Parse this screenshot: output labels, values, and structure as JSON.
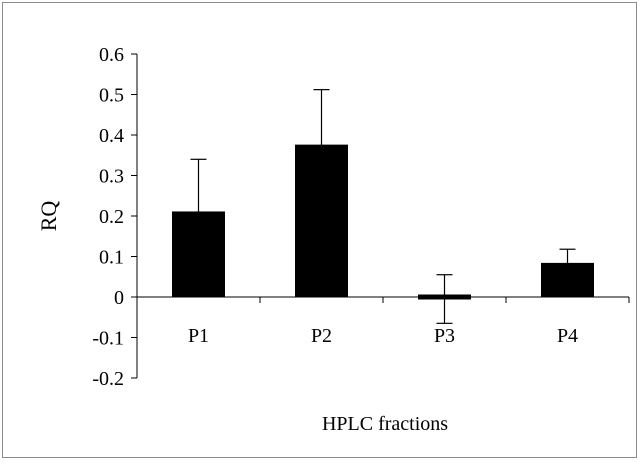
{
  "chart_data": {
    "type": "bar",
    "categories": [
      "P1",
      "P2",
      "P3",
      "P4"
    ],
    "values": [
      0.21,
      0.375,
      -0.005,
      0.083
    ],
    "error_plus": [
      0.13,
      0.137,
      0.06,
      0.035
    ],
    "xlabel": "HPLC fractions",
    "ylabel": "RQ",
    "ylim": [
      -0.2,
      0.6
    ],
    "yticks": [
      -0.2,
      -0.1,
      0,
      0.1,
      0.2,
      0.3,
      0.4,
      0.5,
      0.6
    ],
    "ytick_labels": [
      "-0.2",
      "-0.1",
      "0",
      "0.1",
      "0.2",
      "0.3",
      "0.4",
      "0.5",
      "0.6"
    ],
    "grid": false,
    "legend": "none",
    "bar_color": "#000000"
  }
}
